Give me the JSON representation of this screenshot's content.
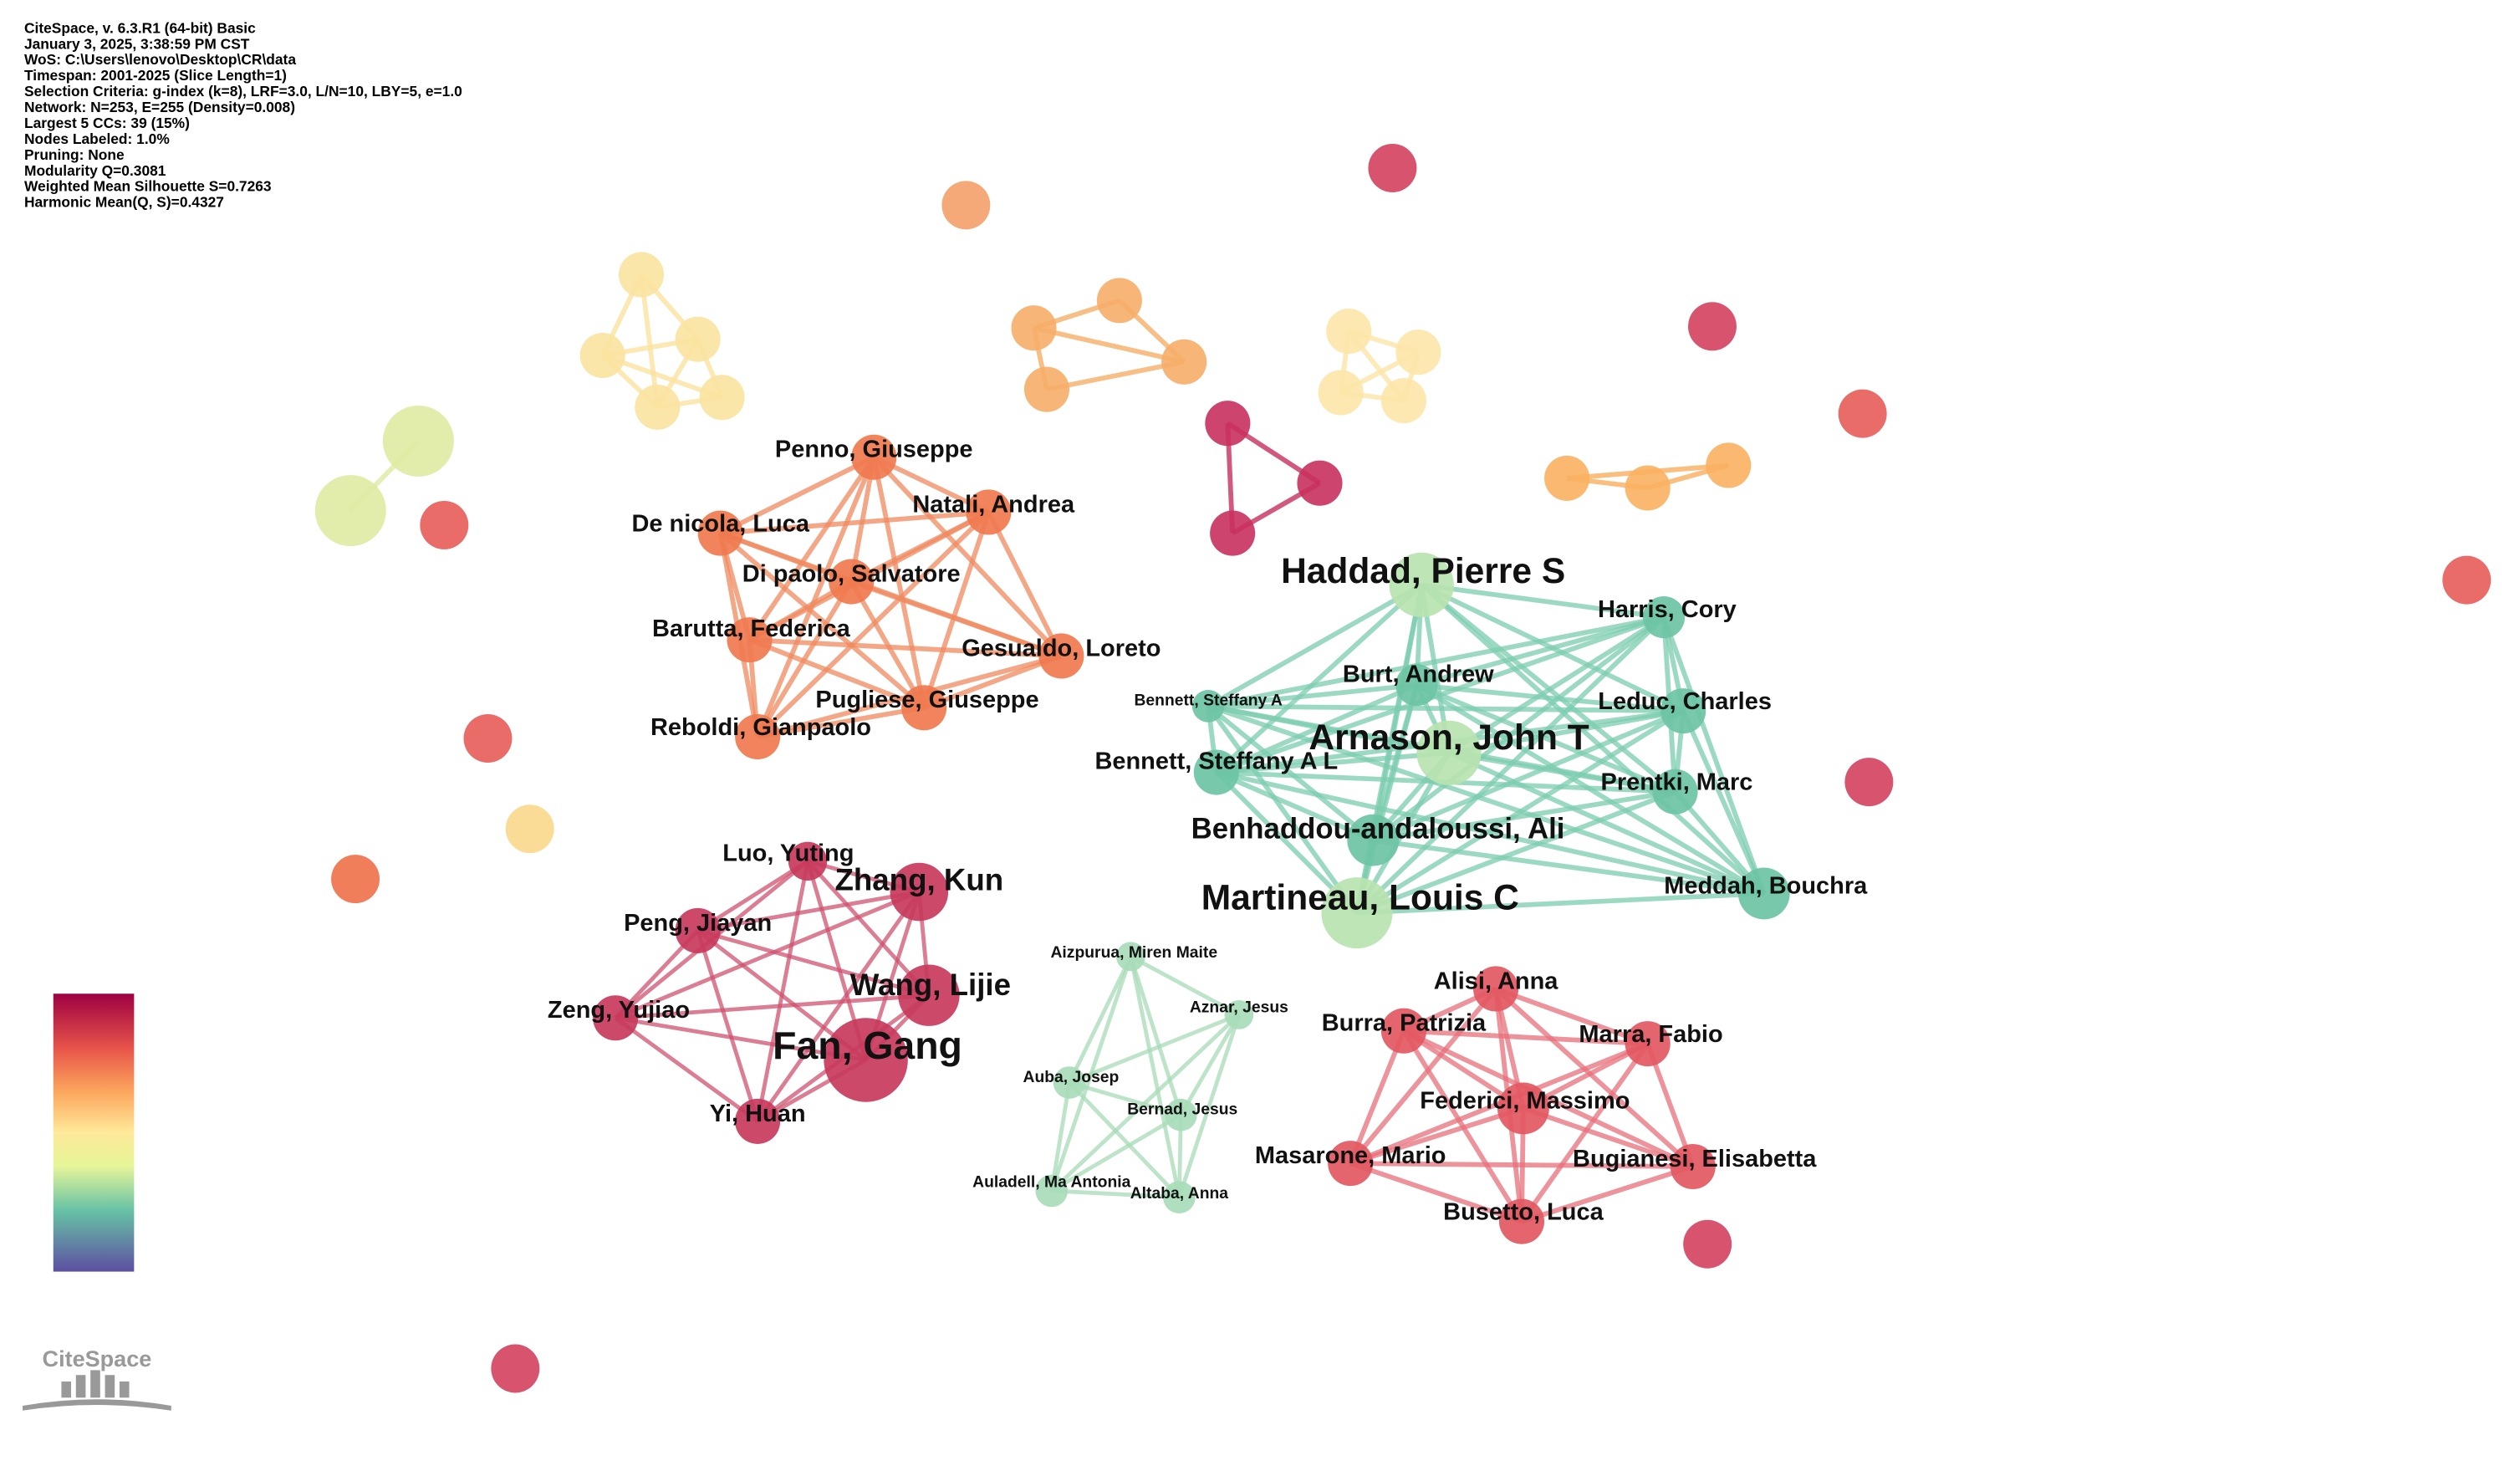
{
  "header": {
    "lines": [
      "CiteSpace, v. 6.3.R1 (64-bit) Basic",
      "January 3, 2025, 3:38:59 PM CST",
      "WoS: C:\\Users\\lenovo\\Desktop\\CR\\data",
      "Timespan: 2001-2025 (Slice Length=1)",
      "Selection Criteria: g-index (k=8), LRF=3.0, L/N=10, LBY=5, e=1.0",
      "Network: N=253, E=255 (Density=0.008)",
      "Largest 5 CCs: 39 (15%)",
      "Nodes Labeled: 1.0%",
      "Pruning: None",
      "Modularity Q=0.3081",
      "Weighted Mean Silhouette S=0.7263",
      "Harmonic Mean(Q, S)=0.4327"
    ]
  },
  "clusters": [
    {
      "nodes": [
        "Penno, Giuseppe",
        "Natali, Andrea",
        "De nicola, Luca",
        "Di paolo, Salvatore",
        "Barutta, Federica",
        "Gesualdo, Loreto",
        "Pugliese, Giuseppe",
        "Reboldi, Gianpaolo"
      ]
    },
    {
      "nodes": [
        "Haddad, Pierre S",
        "Harris, Cory",
        "Burt, Andrew",
        "Bennett, Steffany A",
        "Leduc, Charles",
        "Arnason, John T",
        "Bennett, Steffany A L",
        "Prentki, Marc",
        "Benhaddou-andaloussi, Ali",
        "Martineau, Louis C",
        "Meddah, Bouchra"
      ]
    },
    {
      "nodes": [
        "Luo, Yuting",
        "Zhang, Kun",
        "Peng, Jiayan",
        "Wang, Lijie",
        "Zeng, Yujiao",
        "Fan, Gang",
        "Yi, Huan"
      ]
    },
    {
      "nodes": [
        "Aizpurua, Miren Maite",
        "Aznar, Jesus",
        "Auba, Josep",
        "Bernad, Jesus",
        "Auladell, Ma Antonia",
        "Altaba, Anna"
      ]
    },
    {
      "nodes": [
        "Alisi, Anna",
        "Burra, Patrizia",
        "Marra, Fabio",
        "Federici, Massimo",
        "Masarone, Mario",
        "Bugianesi, Elisabetta",
        "Busetto, Luca"
      ]
    }
  ],
  "logo": "CiteSpace"
}
